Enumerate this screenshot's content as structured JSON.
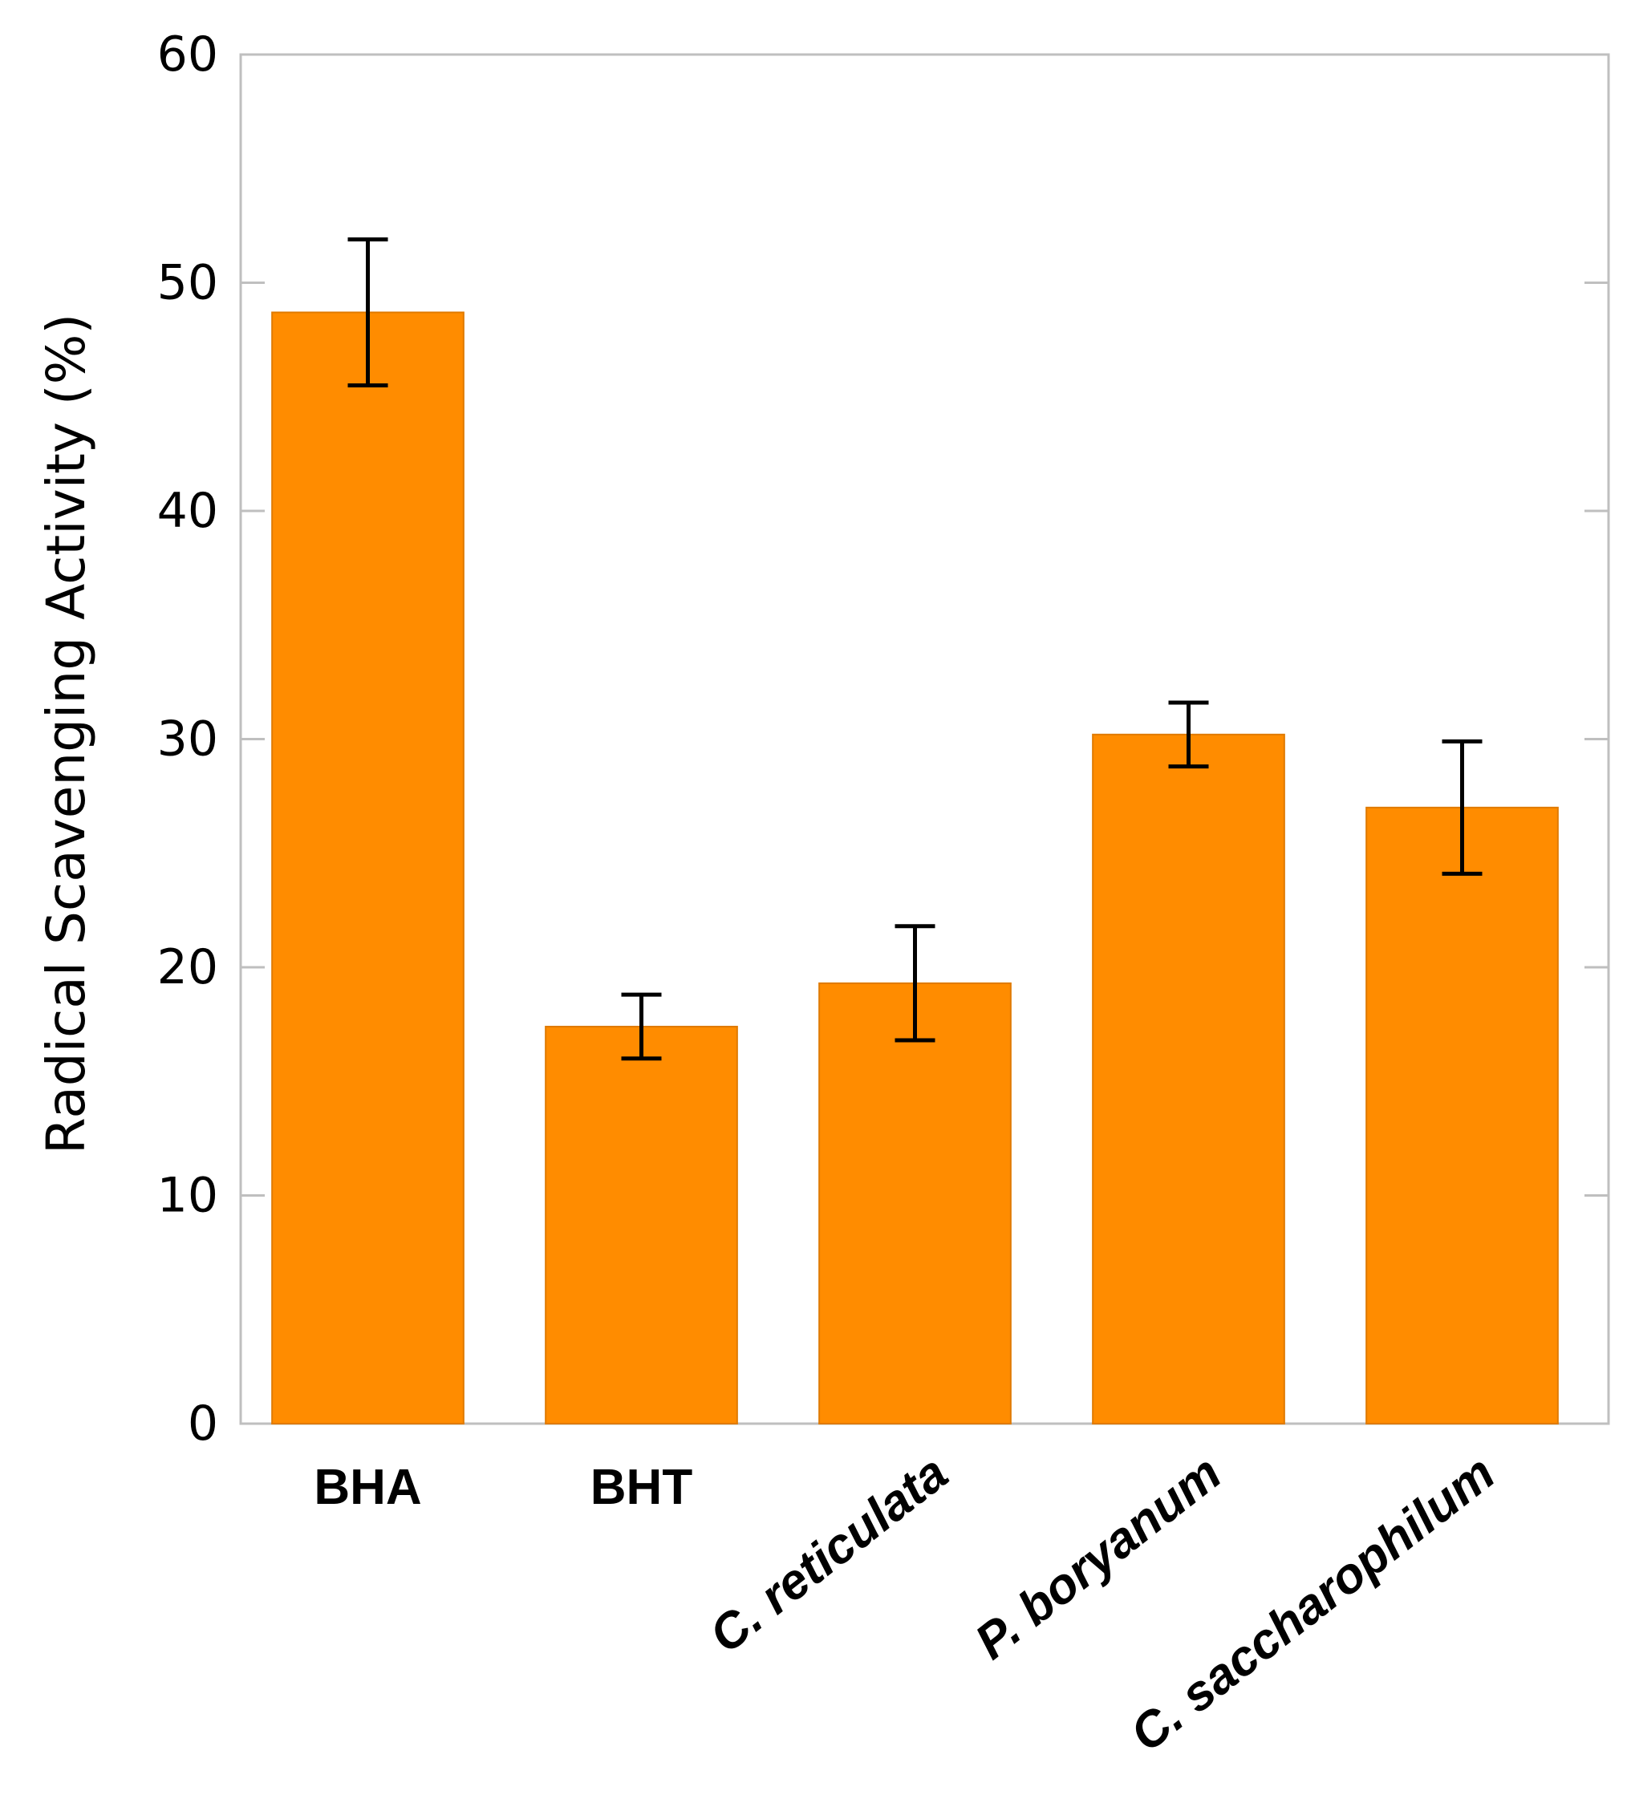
{
  "chart_data": {
    "type": "bar",
    "title": "",
    "xlabel": "",
    "ylabel": "Radical Scavenging Activity (%)",
    "ylim": [
      0,
      60
    ],
    "yticks": [
      0,
      10,
      20,
      30,
      40,
      50,
      60
    ],
    "grid": false,
    "categories": [
      "BHA",
      "BHT",
      "C. reticulata",
      "P. boryanum",
      "C. saccharophilum"
    ],
    "category_italic": [
      false,
      false,
      true,
      true,
      true
    ],
    "values": [
      48.7,
      17.4,
      19.3,
      30.2,
      27.0
    ],
    "errors": [
      3.2,
      1.4,
      2.5,
      1.4,
      2.9
    ],
    "colors": {
      "bar": "#FF8C00",
      "bar_edge": "#E07A00",
      "axis": "#BFBFBF",
      "error_bar": "#000000"
    }
  }
}
